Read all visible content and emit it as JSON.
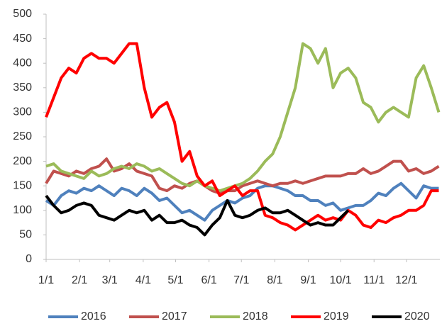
{
  "chart_data": {
    "type": "line",
    "x": [
      0,
      7,
      14,
      21,
      28,
      35,
      42,
      49,
      56,
      63,
      70,
      77,
      84,
      91,
      98,
      105,
      112,
      119,
      126,
      133,
      140,
      147,
      154,
      161,
      168,
      175,
      182,
      189,
      196,
      203,
      210,
      217,
      224,
      231,
      238,
      245,
      252,
      259,
      266,
      273,
      280,
      287,
      294,
      301,
      308,
      315,
      322,
      329,
      336,
      343,
      350,
      357,
      364
    ],
    "xlim": [
      0,
      365
    ],
    "xticks": [
      {
        "value": 0,
        "label": "1/1"
      },
      {
        "value": 31,
        "label": "2/1"
      },
      {
        "value": 59,
        "label": "3/1"
      },
      {
        "value": 90,
        "label": "4/1"
      },
      {
        "value": 120,
        "label": "5/1"
      },
      {
        "value": 151,
        "label": "6/1"
      },
      {
        "value": 181,
        "label": "7/1"
      },
      {
        "value": 212,
        "label": "8/1"
      },
      {
        "value": 243,
        "label": "9/1"
      },
      {
        "value": 273,
        "label": "10/1"
      },
      {
        "value": 304,
        "label": "11/1"
      },
      {
        "value": 334,
        "label": "12/1"
      }
    ],
    "ylim": [
      0,
      500
    ],
    "yticks": [
      0,
      50,
      100,
      150,
      200,
      250,
      300,
      350,
      400,
      450,
      500
    ],
    "legend": "bottom",
    "series": [
      {
        "name": "2016",
        "color": "#4f81bd",
        "values": [
          120,
          110,
          130,
          140,
          135,
          145,
          140,
          150,
          140,
          130,
          145,
          140,
          130,
          145,
          135,
          120,
          125,
          110,
          95,
          100,
          90,
          80,
          100,
          110,
          120,
          115,
          125,
          130,
          145,
          150,
          150,
          145,
          140,
          130,
          130,
          120,
          120,
          110,
          115,
          100,
          105,
          110,
          110,
          120,
          135,
          130,
          145,
          155,
          140,
          125,
          150,
          145,
          145
        ]
      },
      {
        "name": "2017",
        "color": "#c0504d",
        "values": [
          155,
          180,
          175,
          170,
          180,
          175,
          185,
          190,
          205,
          180,
          185,
          195,
          180,
          175,
          170,
          145,
          140,
          150,
          145,
          155,
          160,
          150,
          140,
          135,
          140,
          140,
          150,
          155,
          160,
          155,
          150,
          155,
          155,
          160,
          155,
          160,
          165,
          170,
          170,
          170,
          175,
          175,
          185,
          175,
          180,
          190,
          200,
          200,
          180,
          185,
          175,
          180,
          190
        ]
      },
      {
        "name": "2018",
        "color": "#9bbb59",
        "values": [
          190,
          195,
          180,
          175,
          170,
          165,
          180,
          170,
          175,
          185,
          190,
          185,
          195,
          190,
          180,
          185,
          175,
          165,
          155,
          150,
          160,
          150,
          145,
          140,
          145,
          150,
          155,
          165,
          180,
          200,
          215,
          250,
          300,
          350,
          440,
          430,
          400,
          430,
          350,
          380,
          390,
          370,
          320,
          310,
          280,
          300,
          310,
          300,
          290,
          370,
          395,
          350,
          300
        ]
      },
      {
        "name": "2019",
        "color": "#ff0000",
        "values": [
          290,
          330,
          370,
          390,
          380,
          410,
          420,
          410,
          410,
          400,
          420,
          440,
          440,
          350,
          290,
          310,
          320,
          280,
          200,
          220,
          170,
          150,
          160,
          130,
          140,
          150,
          130,
          140,
          140,
          90,
          85,
          75,
          70,
          60,
          70,
          80,
          90,
          80,
          85,
          80,
          100,
          90,
          70,
          65,
          80,
          75,
          85,
          90,
          100,
          100,
          110,
          140,
          140
        ]
      },
      {
        "name": "2020",
        "color": "#000000",
        "values": [
          130,
          110,
          95,
          100,
          110,
          115,
          110,
          90,
          85,
          80,
          90,
          100,
          95,
          100,
          80,
          90,
          75,
          75,
          80,
          70,
          65,
          50,
          70,
          85,
          120,
          90,
          85,
          90,
          100,
          105,
          95,
          95,
          100,
          90,
          80,
          70,
          75,
          70,
          70,
          85,
          100,
          null,
          null,
          null,
          null,
          null,
          null,
          null,
          null,
          null,
          null,
          null,
          null
        ]
      }
    ]
  }
}
